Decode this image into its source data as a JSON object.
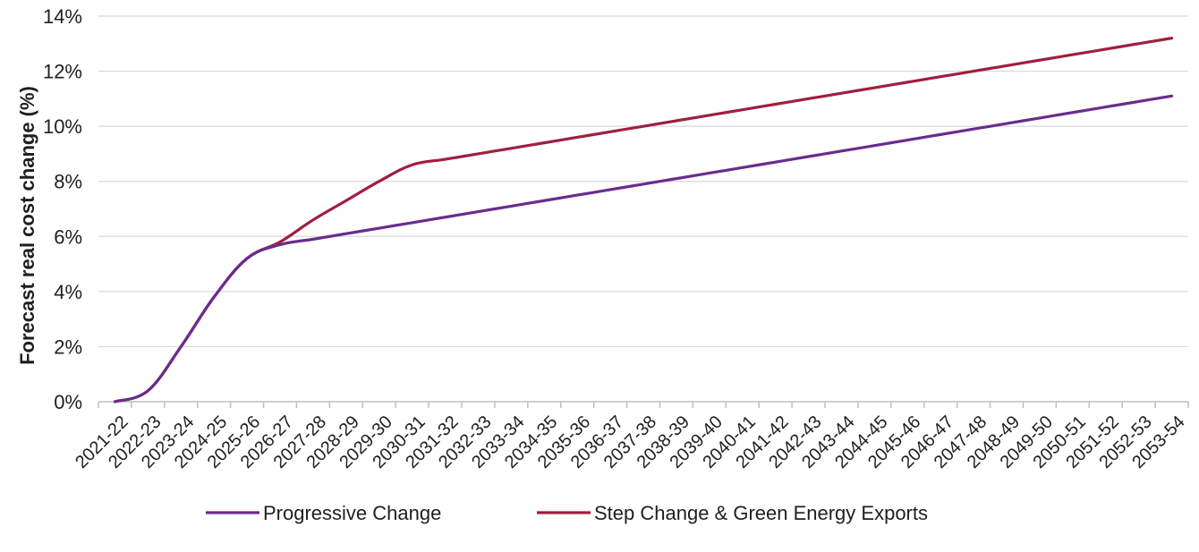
{
  "chart_data": {
    "type": "line",
    "title": "",
    "xlabel": "",
    "ylabel": "Forecast real cost change (%)",
    "ylim": [
      0,
      14
    ],
    "y_ticks": [
      "0%",
      "2%",
      "4%",
      "6%",
      "8%",
      "10%",
      "12%",
      "14%"
    ],
    "y_tick_values": [
      0,
      2,
      4,
      6,
      8,
      10,
      12,
      14
    ],
    "grid": "horizontal",
    "legend_position": "bottom",
    "categories": [
      "2021-22",
      "2022-23",
      "2023-24",
      "2024-25",
      "2025-26",
      "2026-27",
      "2027-28",
      "2028-29",
      "2029-30",
      "2030-31",
      "2031-32",
      "2032-33",
      "2033-34",
      "2034-35",
      "2035-36",
      "2036-37",
      "2037-38",
      "2038-39",
      "2039-40",
      "2040-41",
      "2041-42",
      "2042-43",
      "2043-44",
      "2044-45",
      "2045-46",
      "2046-47",
      "2047-48",
      "2048-49",
      "2049-50",
      "2050-51",
      "2051-52",
      "2052-53",
      "2053-54"
    ],
    "series": [
      {
        "name": "Progressive Change",
        "color": "#6a2c8c",
        "values": [
          0.0,
          0.4,
          2.0,
          3.8,
          5.2,
          5.7,
          5.9,
          6.1,
          6.3,
          6.5,
          6.7,
          6.9,
          7.1,
          7.3,
          7.5,
          7.7,
          7.9,
          8.1,
          8.3,
          8.5,
          8.7,
          8.9,
          9.1,
          9.3,
          9.5,
          9.7,
          9.9,
          10.1,
          10.3,
          10.5,
          10.7,
          10.9,
          11.1
        ]
      },
      {
        "name": "Step Change & Green Energy Exports",
        "color": "#9e1f3f",
        "values": [
          0.0,
          0.4,
          2.0,
          3.8,
          5.2,
          5.8,
          6.6,
          7.3,
          8.0,
          8.6,
          8.8,
          9.0,
          9.2,
          9.4,
          9.6,
          9.8,
          10.0,
          10.2,
          10.4,
          10.6,
          10.8,
          11.0,
          11.2,
          11.4,
          11.6,
          11.8,
          12.0,
          12.2,
          12.4,
          12.6,
          12.8,
          13.0,
          13.2
        ]
      }
    ]
  }
}
